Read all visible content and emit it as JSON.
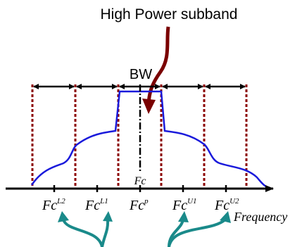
{
  "title": "High Power subband",
  "bw_label": "BW",
  "fc_label": "Fc",
  "x_axis_label": "Frequency",
  "carriers": [
    {
      "base": "Fc",
      "sup": "L2"
    },
    {
      "base": "Fc",
      "sup": "L1"
    },
    {
      "base": "Fc",
      "sup": "p"
    },
    {
      "base": "Fc",
      "sup": "U1"
    },
    {
      "base": "Fc",
      "sup": "U2"
    }
  ],
  "colors": {
    "spectrum": "#1a1adb",
    "boundary": "#8b0000",
    "title_arrow": "#7a0000",
    "teal_arrows": "#1a8a8a",
    "text": "#000000"
  }
}
